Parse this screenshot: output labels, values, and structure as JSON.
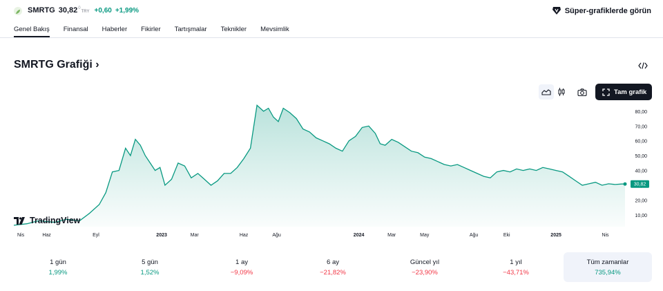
{
  "header": {
    "symbol": "SMRTG",
    "price": "30,82",
    "price_sup": "0",
    "currency": "TRY",
    "change": "+0,60",
    "change_percent": "+1,99%",
    "super_charts_label": "Süper-grafiklerde görün",
    "positive_color": "#089981",
    "negative_color": "#f23645"
  },
  "tabs": [
    {
      "label": "Genel Bakış",
      "active": true
    },
    {
      "label": "Finansal"
    },
    {
      "label": "Haberler"
    },
    {
      "label": "Fikirler"
    },
    {
      "label": "Tartışmalar"
    },
    {
      "label": "Teknikler"
    },
    {
      "label": "Mevsimlik"
    }
  ],
  "title": "SMRTG Grafiği",
  "title_chevron": "›",
  "toolbar": {
    "area_icon": "area-chart-icon",
    "candle_icon": "candlestick-icon",
    "camera_icon": "camera-icon",
    "full_chart_label": "Tam grafik"
  },
  "watermark": "TradingView",
  "chart_data": {
    "type": "area",
    "line_color": "#089981",
    "y_ticks": [
      "80,00",
      "70,00",
      "60,00",
      "50,00",
      "40,00",
      "30,00",
      "20,00",
      "10,00"
    ],
    "ylim": [
      2,
      86
    ],
    "last_price_label": "30,82",
    "x_ticks": [
      {
        "label": "Nis",
        "t": 0,
        "bold": false
      },
      {
        "label": "Haz",
        "t": 2,
        "bold": false
      },
      {
        "label": "Eyl",
        "t": 5,
        "bold": false
      },
      {
        "label": "2023",
        "t": 9,
        "bold": true
      },
      {
        "label": "Mar",
        "t": 11,
        "bold": false
      },
      {
        "label": "Haz",
        "t": 14,
        "bold": false
      },
      {
        "label": "Ağu",
        "t": 16,
        "bold": false
      },
      {
        "label": "2024",
        "t": 21,
        "bold": true
      },
      {
        "label": "Mar",
        "t": 23,
        "bold": false
      },
      {
        "label": "May",
        "t": 25,
        "bold": false
      },
      {
        "label": "Ağu",
        "t": 28,
        "bold": false
      },
      {
        "label": "Eki",
        "t": 30,
        "bold": false
      },
      {
        "label": "2025",
        "t": 33,
        "bold": true
      },
      {
        "label": "Nis",
        "t": 36,
        "bold": false
      }
    ],
    "series": [
      {
        "t": [
          0,
          0.8,
          1.5,
          2.5,
          3.2,
          4,
          4.6,
          5.2,
          5.6,
          6,
          6.4,
          6.8,
          7.1,
          7.4,
          7.7,
          8,
          8.3,
          8.6,
          8.9,
          9.2,
          9.6,
          10,
          10.4,
          10.8,
          11.2,
          11.6,
          12,
          12.4,
          12.8,
          13.2,
          13.6,
          14,
          14.4,
          14.8,
          15.2,
          15.5,
          15.8,
          16.1,
          16.4,
          16.8,
          17.2,
          17.6,
          18,
          18.4,
          18.8,
          19.2,
          19.6,
          20,
          20.4,
          20.8,
          21.2,
          21.6,
          22,
          22.3,
          22.6,
          23,
          23.4,
          23.8,
          24.2,
          24.6,
          25,
          25.4,
          25.8,
          26.2,
          26.6,
          27,
          27.4,
          27.8,
          28.2,
          28.6,
          29,
          29.4,
          29.8,
          30.2,
          30.6,
          31,
          31.4,
          31.8,
          32.2,
          32.6,
          33,
          33.4,
          33.8,
          34.2,
          34.6,
          35,
          35.4,
          35.8,
          36.2,
          36.6,
          37,
          37.2
        ],
        "y": [
          3,
          4,
          6,
          5,
          7,
          6,
          11,
          17,
          25,
          39,
          40,
          55,
          50,
          61,
          57,
          50,
          45,
          40,
          42,
          30,
          34,
          45,
          43,
          35,
          38,
          34,
          30,
          33,
          38,
          38,
          42,
          48,
          55,
          84,
          80,
          82,
          76,
          73,
          82,
          79,
          75,
          68,
          66,
          62,
          60,
          58,
          55,
          53,
          60,
          63,
          69,
          70,
          65,
          58,
          57,
          61,
          59,
          56,
          53,
          52,
          49,
          48,
          46,
          44,
          43,
          44,
          42,
          40,
          38,
          36,
          35,
          39,
          40,
          39,
          41,
          40,
          41,
          40,
          42,
          41,
          40,
          39,
          36,
          33,
          30,
          31,
          32,
          30,
          31,
          30.5,
          30.82,
          30.82
        ]
      }
    ]
  },
  "periods": [
    {
      "label": "1 gün",
      "value": "1,99%",
      "sign": "pos"
    },
    {
      "label": "5 gün",
      "value": "1,52%",
      "sign": "pos"
    },
    {
      "label": "1 ay",
      "value": "−9,09%",
      "sign": "neg"
    },
    {
      "label": "6 ay",
      "value": "−21,82%",
      "sign": "neg"
    },
    {
      "label": "Güncel yıl",
      "value": "−23,90%",
      "sign": "neg"
    },
    {
      "label": "1 yıl",
      "value": "−43,71%",
      "sign": "neg"
    },
    {
      "label": "Tüm zamanlar",
      "value": "735,94%",
      "sign": "pos",
      "selected": true
    }
  ]
}
